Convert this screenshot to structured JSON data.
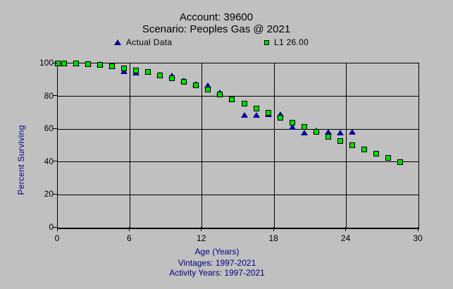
{
  "title": {
    "line1": "Account: 39600",
    "line2": "Scenario: Peoples Gas @ 2021"
  },
  "legend": [
    {
      "label": "Actual Data",
      "marker": "triangle",
      "color": "#0000a0"
    },
    {
      "label": "L1 26.00",
      "marker": "square",
      "color": "#00dd00"
    }
  ],
  "footer": {
    "xlabel": "Age (Years)",
    "vintages": "Vintages: 1997-2021",
    "activity_years": "Activity Years: 1997-2021"
  },
  "colors": {
    "background": "#c0c0c0",
    "grid": "#000000",
    "axis_text": "#000000",
    "label_text": "#000080",
    "actual_marker": "#0000a0",
    "curve_marker": "#00dd00"
  },
  "chart_data": {
    "type": "scatter",
    "title": "Account: 39600 — Scenario: Peoples Gas @ 2021",
    "xlabel": "Age (Years)",
    "ylabel": "Percent Surviving",
    "xlim": [
      0,
      30
    ],
    "ylim": [
      0,
      100
    ],
    "x_ticks": [
      0,
      6,
      12,
      18,
      24,
      30
    ],
    "y_ticks": [
      0,
      20,
      40,
      60,
      80,
      100
    ],
    "grid": true,
    "legend_position": "top",
    "series": [
      {
        "name": "Actual Data",
        "marker": "triangle",
        "color": "#0000a0",
        "points": [
          [
            0,
            100
          ],
          [
            0.5,
            100
          ],
          [
            1.5,
            100
          ],
          [
            2.5,
            99.9
          ],
          [
            3.5,
            99.4
          ],
          [
            4.5,
            98.5
          ],
          [
            5.5,
            95.3
          ],
          [
            6.5,
            94.6
          ],
          [
            7.5,
            94.7
          ],
          [
            8.5,
            93.1
          ],
          [
            9.5,
            92.9
          ],
          [
            10.5,
            89.7
          ],
          [
            11.5,
            87.4
          ],
          [
            12.5,
            86.6
          ],
          [
            13.5,
            82.3
          ],
          [
            14.5,
            78.2
          ],
          [
            15.5,
            68.8
          ],
          [
            16.5,
            68.8
          ],
          [
            17.5,
            69.0
          ],
          [
            18.5,
            69.2
          ],
          [
            19.5,
            61.3
          ],
          [
            20.5,
            57.9
          ],
          [
            21.5,
            59.4
          ],
          [
            22.5,
            58.2
          ],
          [
            23.5,
            58.0
          ],
          [
            24.5,
            58.2
          ]
        ]
      },
      {
        "name": "L1 26.00",
        "marker": "square",
        "color": "#00dd00",
        "points": [
          [
            0,
            100
          ],
          [
            0.5,
            100
          ],
          [
            1.5,
            99.9
          ],
          [
            2.5,
            99.7
          ],
          [
            3.5,
            99.1
          ],
          [
            4.5,
            98.2
          ],
          [
            5.5,
            97.1
          ],
          [
            6.5,
            95.9
          ],
          [
            7.5,
            94.7
          ],
          [
            8.5,
            92.8
          ],
          [
            9.5,
            91.2
          ],
          [
            10.5,
            88.9
          ],
          [
            11.5,
            86.5
          ],
          [
            12.5,
            84.0
          ],
          [
            13.5,
            81.2
          ],
          [
            14.5,
            78.2
          ],
          [
            15.5,
            75.4
          ],
          [
            16.5,
            72.7
          ],
          [
            17.5,
            70.0
          ],
          [
            18.5,
            66.9
          ],
          [
            19.5,
            64.0
          ],
          [
            20.5,
            61.2
          ],
          [
            21.5,
            58.5
          ],
          [
            22.5,
            55.5
          ],
          [
            23.5,
            52.7
          ],
          [
            24.5,
            50.2
          ],
          [
            25.5,
            47.6
          ],
          [
            26.5,
            45.0
          ],
          [
            27.5,
            42.5
          ],
          [
            28.5,
            40.0
          ]
        ]
      }
    ]
  }
}
